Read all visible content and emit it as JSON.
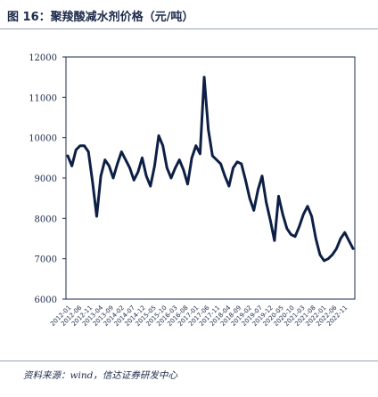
{
  "figure": {
    "title": "图 16：聚羧酸减水剂价格（元/吨）",
    "source": "资料来源：wind，信达证券研发中心"
  },
  "chart_data": {
    "type": "line",
    "title": "",
    "xlabel": "",
    "ylabel": "",
    "ylim": [
      6000,
      12000
    ],
    "yticks": [
      6000,
      7000,
      8000,
      9000,
      10000,
      11000,
      12000
    ],
    "x_tick_labels": [
      "2012-01",
      "2012-06",
      "2012-11",
      "2013-04",
      "2013-09",
      "2014-02",
      "2014-07",
      "2014-12",
      "2015-05",
      "2015-10",
      "2016-03",
      "2016-08",
      "2017-01",
      "2017-06",
      "2017-11",
      "2018-04",
      "2018-09",
      "2019-02",
      "2019-07",
      "2019-12",
      "2020-05",
      "2020-10",
      "2021-03",
      "2021-08",
      "2022-01",
      "2022-06",
      "2022-11"
    ],
    "series": [
      {
        "values": [
          9550,
          9300,
          9700,
          9800,
          9800,
          9650,
          8900,
          8050,
          9050,
          9450,
          9300,
          9000,
          9350,
          9650,
          9450,
          9250,
          8950,
          9150,
          9500,
          9050,
          8800,
          9300,
          10050,
          9800,
          9250,
          9000,
          9250,
          9450,
          9200,
          8850,
          9500,
          9800,
          9600,
          11500,
          10200,
          9550,
          9450,
          9350,
          9050,
          8800,
          9250,
          9400,
          9350,
          8950,
          8500,
          8200,
          8700,
          9050,
          8400,
          7950,
          7450,
          8550,
          8100,
          7750,
          7600,
          7550,
          7800,
          8100,
          8300,
          8050,
          7500,
          7100,
          6950,
          7000,
          7100,
          7250,
          7500,
          7650,
          7450,
          7250
        ]
      }
    ],
    "colors": {
      "line": "#0d1f45",
      "axis": "#1b2a4a",
      "text": "#1b2a4a"
    },
    "grid": false,
    "legend": "none"
  }
}
